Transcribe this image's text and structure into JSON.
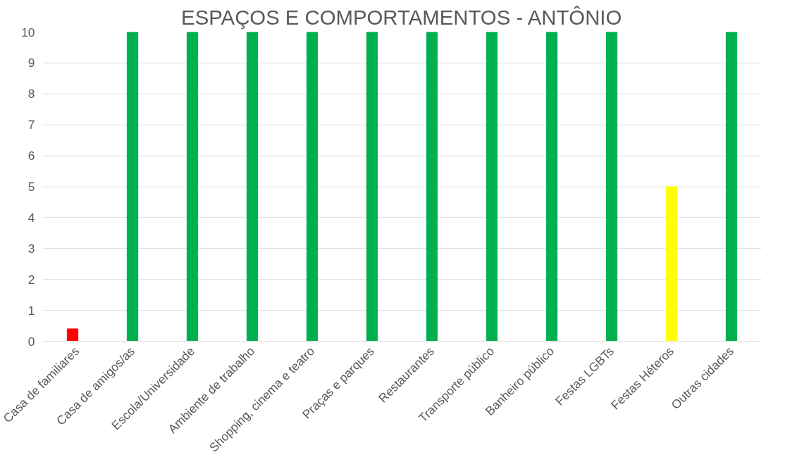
{
  "chart_data": {
    "type": "bar",
    "title": "ESPAÇOS E COMPORTAMENTOS - ANTÔNIO",
    "categories": [
      "Casa de familiares",
      "Casa de amigos/as",
      "Escola/Universidade",
      "Ambiente de trabalho",
      "Shopping, cinema e teatro",
      "Praças e parques",
      "Restaurantes",
      "Transporte público",
      "Banheiro público",
      "Festas LGBTs",
      "Festas Héteros",
      "Outras cidades"
    ],
    "values": [
      0.4,
      10,
      10,
      10,
      10,
      10,
      10,
      10,
      10,
      10,
      5,
      10
    ],
    "colors": [
      "#ff0000",
      "#00b050",
      "#00b050",
      "#00b050",
      "#00b050",
      "#00b050",
      "#00b050",
      "#00b050",
      "#00b050",
      "#00b050",
      "#ffff00",
      "#00b050"
    ],
    "ylim": [
      0,
      10
    ],
    "yticks": [
      0,
      1,
      2,
      3,
      4,
      5,
      6,
      7,
      8,
      9,
      10
    ],
    "grid": "y"
  }
}
